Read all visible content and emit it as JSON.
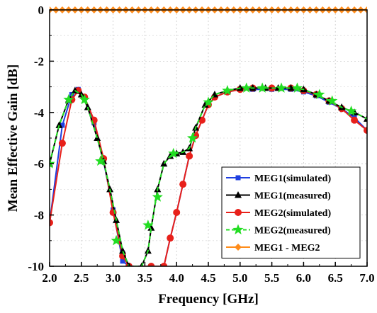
{
  "chart_data": {
    "type": "line",
    "xlabel": "Frequency [GHz]",
    "ylabel": "Mean Effective Gain [dB]",
    "xlim": [
      2.0,
      7.0
    ],
    "ylim": [
      -10,
      0
    ],
    "xticks": [
      "2.0",
      "2.5",
      "3.0",
      "3.5",
      "4.0",
      "4.5",
      "5.0",
      "5.5",
      "6.0",
      "6.5",
      "7.0"
    ],
    "yticks": [
      "0",
      "-2",
      "-4",
      "-6",
      "-8",
      "-10"
    ],
    "grid": true,
    "legend_position": "bottom-right",
    "series": [
      {
        "name": "MEG1(simulated)",
        "color": "#1f3fe0",
        "marker": "square",
        "x": [
          2.0,
          2.2,
          2.35,
          2.45,
          2.55,
          2.7,
          2.85,
          3.0,
          3.15,
          3.25,
          3.6,
          3.8,
          3.9,
          4.0,
          4.1,
          4.2,
          4.3,
          4.4,
          4.5,
          4.6,
          4.8,
          5.0,
          5.2,
          5.5,
          5.8,
          6.0,
          6.2,
          6.4,
          6.6,
          6.8,
          7.0
        ],
        "y": [
          -8.3,
          -4.5,
          -3.3,
          -3.1,
          -3.4,
          -4.4,
          -5.9,
          -7.8,
          -9.8,
          -10.0,
          -10.0,
          -10.0,
          -8.9,
          -7.9,
          -6.8,
          -5.7,
          -4.9,
          -4.3,
          -3.7,
          -3.4,
          -3.2,
          -3.1,
          -3.1,
          -3.1,
          -3.1,
          -3.2,
          -3.35,
          -3.6,
          -3.85,
          -4.2,
          -4.7
        ]
      },
      {
        "name": "MEG1(measured)",
        "color": "#000000",
        "marker": "triangle",
        "x": [
          2.0,
          2.15,
          2.3,
          2.4,
          2.5,
          2.6,
          2.75,
          2.85,
          2.95,
          3.05,
          3.15,
          3.25,
          3.45,
          3.55,
          3.6,
          3.7,
          3.8,
          3.9,
          4.0,
          4.1,
          4.2,
          4.3,
          4.45,
          4.6,
          4.8,
          5.0,
          5.2,
          5.4,
          5.6,
          5.8,
          6.0,
          6.2,
          6.4,
          6.6,
          6.8,
          7.0
        ],
        "y": [
          -6.0,
          -4.5,
          -3.5,
          -3.15,
          -3.3,
          -3.8,
          -5.0,
          -5.9,
          -7.0,
          -8.2,
          -9.4,
          -10.0,
          -10.0,
          -9.4,
          -8.5,
          -7.0,
          -6.0,
          -5.7,
          -5.6,
          -5.55,
          -5.4,
          -4.6,
          -3.7,
          -3.3,
          -3.15,
          -3.05,
          -3.05,
          -3.05,
          -3.05,
          -3.05,
          -3.1,
          -3.3,
          -3.55,
          -3.8,
          -4.0,
          -4.25
        ]
      },
      {
        "name": "MEG2(simulated)",
        "color": "#e8201a",
        "marker": "circle",
        "x": [
          2.0,
          2.2,
          2.35,
          2.45,
          2.55,
          2.7,
          2.85,
          3.0,
          3.15,
          3.25,
          3.6,
          3.8,
          3.9,
          4.0,
          4.1,
          4.2,
          4.3,
          4.4,
          4.5,
          4.6,
          4.8,
          5.0,
          5.2,
          5.5,
          5.8,
          6.0,
          6.2,
          6.4,
          6.6,
          6.8,
          7.0
        ],
        "y": [
          -8.3,
          -5.2,
          -3.5,
          -3.15,
          -3.4,
          -4.3,
          -5.8,
          -7.9,
          -9.6,
          -10.0,
          -10.0,
          -10.0,
          -8.9,
          -7.9,
          -6.8,
          -5.7,
          -4.9,
          -4.3,
          -3.7,
          -3.4,
          -3.2,
          -3.1,
          -3.05,
          -3.05,
          -3.05,
          -3.15,
          -3.3,
          -3.55,
          -3.85,
          -4.3,
          -4.7
        ]
      },
      {
        "name": "MEG2(measured)",
        "color": "#22dd22",
        "marker": "star",
        "x": [
          2.0,
          2.15,
          2.3,
          2.4,
          2.5,
          2.6,
          2.75,
          2.85,
          2.95,
          3.05,
          3.15,
          3.25,
          3.45,
          3.55,
          3.6,
          3.7,
          3.8,
          3.9,
          4.0,
          4.1,
          4.2,
          4.3,
          4.45,
          4.6,
          4.8,
          5.0,
          5.2,
          5.4,
          5.6,
          5.8,
          6.0,
          6.2,
          6.4,
          6.6,
          6.8,
          7.0
        ],
        "y": [
          -6.0,
          -4.5,
          -3.5,
          -3.15,
          -3.3,
          -3.8,
          -5.0,
          -5.9,
          -7.0,
          -8.2,
          -9.4,
          -10.0,
          -10.0,
          -9.4,
          -8.5,
          -7.0,
          -6.0,
          -5.7,
          -5.6,
          -5.55,
          -5.4,
          -4.6,
          -3.7,
          -3.3,
          -3.15,
          -3.05,
          -3.05,
          -3.05,
          -3.05,
          -3.05,
          -3.1,
          -3.3,
          -3.55,
          -3.8,
          -4.0,
          -4.25
        ],
        "marker_x": [
          2.0,
          2.3,
          2.55,
          2.8,
          3.05,
          3.55,
          3.7,
          3.95,
          4.25,
          4.5,
          4.8,
          5.1,
          5.35,
          5.65,
          5.9,
          6.25,
          6.45,
          6.75
        ],
        "marker_y": [
          -6.0,
          -3.5,
          -3.5,
          -5.9,
          -9.0,
          -8.4,
          -7.3,
          -5.6,
          -5.0,
          -3.6,
          -3.15,
          -3.05,
          -3.05,
          -3.05,
          -3.05,
          -3.3,
          -3.55,
          -3.95
        ]
      },
      {
        "name": "MEG1 - MEG2",
        "color": "#ff8c1a",
        "marker": "diamond",
        "x": [
          2.0,
          2.1,
          2.2,
          2.3,
          2.4,
          2.5,
          2.6,
          2.7,
          2.8,
          2.9,
          3.0,
          3.1,
          3.2,
          3.3,
          3.4,
          3.5,
          3.6,
          3.7,
          3.8,
          3.9,
          4.0,
          4.1,
          4.2,
          4.3,
          4.4,
          4.5,
          4.6,
          4.7,
          4.8,
          4.9,
          5.0,
          5.1,
          5.2,
          5.3,
          5.4,
          5.5,
          5.6,
          5.7,
          5.8,
          5.9,
          6.0,
          6.1,
          6.2,
          6.3,
          6.4,
          6.5,
          6.6,
          6.7,
          6.8,
          6.9,
          7.0
        ],
        "y": [
          0,
          0,
          0,
          0,
          0,
          0,
          0,
          0,
          0,
          0,
          0,
          0,
          0,
          0,
          0,
          0,
          0,
          0,
          0,
          0,
          0,
          0,
          0,
          0,
          0,
          0,
          0,
          0,
          0,
          0,
          0,
          0,
          0,
          0,
          0,
          0,
          0,
          0,
          0,
          0,
          0,
          0,
          0,
          0,
          0,
          0,
          0,
          0,
          0,
          0,
          0
        ]
      }
    ]
  }
}
